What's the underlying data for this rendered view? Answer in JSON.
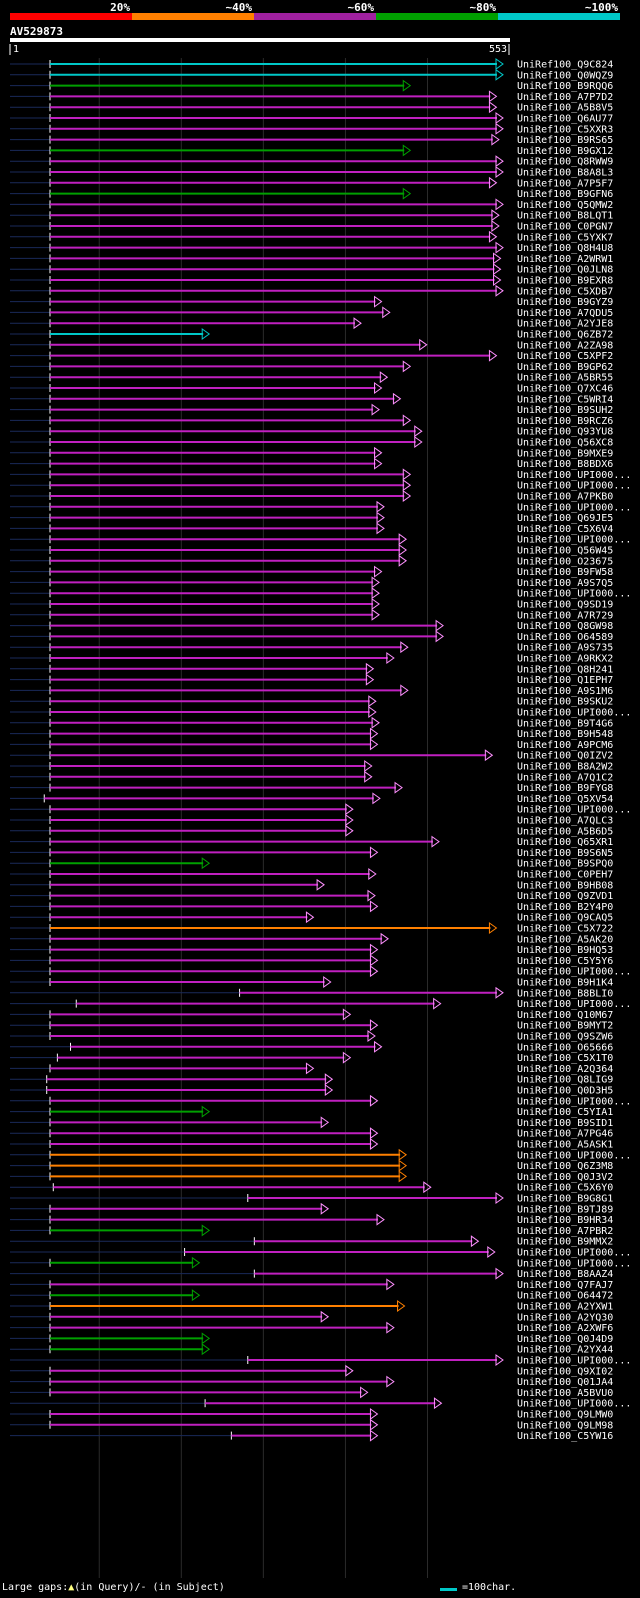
{
  "identity_scale": [
    {
      "label": "20%",
      "color": "#ff0000"
    },
    {
      "label": "~40%",
      "color": "#ff8000"
    },
    {
      "label": "~60%",
      "color": "#a020a0"
    },
    {
      "label": "~80%",
      "color": "#00a000"
    },
    {
      "label": "~100%",
      "color": "#00c8c8"
    }
  ],
  "query": {
    "id": "AV529873",
    "start": "1",
    "end": "553",
    "length": 553
  },
  "legend": {
    "text": "Large gaps:",
    "query_part": "(in Query)/",
    "subject_part": "- (in Subject)",
    "scale_text": "=100char."
  },
  "hits": [
    {
      "id": "UniRef100_Q9C824",
      "c": "cyan",
      "s": 1,
      "e": 553
    },
    {
      "id": "UniRef100_Q0WQZ9",
      "c": "cyan",
      "s": 1,
      "e": 553
    },
    {
      "id": "UniRef100_B9RQQ6",
      "c": "green",
      "s": 1,
      "e": 440
    },
    {
      "id": "UniRef100_A7P7D2",
      "c": "magenta",
      "s": 1,
      "e": 545
    },
    {
      "id": "UniRef100_A5B8V5",
      "c": "magenta",
      "s": 1,
      "e": 545
    },
    {
      "id": "UniRef100_Q6AU77",
      "c": "magenta",
      "s": 1,
      "e": 553
    },
    {
      "id": "UniRef100_C5XXR3",
      "c": "magenta",
      "s": 1,
      "e": 553
    },
    {
      "id": "UniRef100_B9RS65",
      "c": "magenta",
      "s": 1,
      "e": 548
    },
    {
      "id": "UniRef100_B9GX12",
      "c": "green",
      "s": 1,
      "e": 440
    },
    {
      "id": "UniRef100_Q8RWW9",
      "c": "magenta",
      "s": 1,
      "e": 553
    },
    {
      "id": "UniRef100_B8A8L3",
      "c": "magenta",
      "s": 1,
      "e": 553
    },
    {
      "id": "UniRef100_A7P5F7",
      "c": "magenta",
      "s": 1,
      "e": 545
    },
    {
      "id": "UniRef100_B9GFN6",
      "c": "green",
      "s": 1,
      "e": 440
    },
    {
      "id": "UniRef100_Q5QMW2",
      "c": "magenta",
      "s": 1,
      "e": 553
    },
    {
      "id": "UniRef100_B8LQT1",
      "c": "magenta",
      "s": 1,
      "e": 548
    },
    {
      "id": "UniRef100_C0PGN7",
      "c": "magenta",
      "s": 1,
      "e": 548
    },
    {
      "id": "UniRef100_C5YXK7",
      "c": "magenta",
      "s": 1,
      "e": 545
    },
    {
      "id": "UniRef100_Q8H4U8",
      "c": "magenta",
      "s": 1,
      "e": 553
    },
    {
      "id": "UniRef100_A2WRW1",
      "c": "magenta",
      "s": 1,
      "e": 550
    },
    {
      "id": "UniRef100_Q0JLN8",
      "c": "magenta",
      "s": 1,
      "e": 550
    },
    {
      "id": "UniRef100_B9EXR8",
      "c": "magenta",
      "s": 1,
      "e": 550
    },
    {
      "id": "UniRef100_C5XDB7",
      "c": "magenta",
      "s": 1,
      "e": 553
    },
    {
      "id": "UniRef100_B9GYZ9",
      "c": "magenta",
      "s": 1,
      "e": 405
    },
    {
      "id": "UniRef100_A7QDU5",
      "c": "magenta",
      "s": 1,
      "e": 415
    },
    {
      "id": "UniRef100_A2YJE8",
      "c": "magenta",
      "s": 1,
      "e": 380
    },
    {
      "id": "UniRef100_Q6ZB72",
      "c": "cyan",
      "s": 1,
      "e": 195
    },
    {
      "id": "UniRef100_A2ZA98",
      "c": "magenta",
      "s": 1,
      "e": 460
    },
    {
      "id": "UniRef100_C5XPF2",
      "c": "magenta",
      "s": 1,
      "e": 545
    },
    {
      "id": "UniRef100_B9GP62",
      "c": "magenta",
      "s": 1,
      "e": 440
    },
    {
      "id": "UniRef100_A5BR55",
      "c": "magenta",
      "s": 1,
      "e": 412
    },
    {
      "id": "UniRef100_Q7XC46",
      "c": "magenta",
      "s": 1,
      "e": 405
    },
    {
      "id": "UniRef100_C5WRI4",
      "c": "magenta",
      "s": 1,
      "e": 428
    },
    {
      "id": "UniRef100_B9SUH2",
      "c": "magenta",
      "s": 1,
      "e": 402
    },
    {
      "id": "UniRef100_B9RCZ6",
      "c": "magenta",
      "s": 1,
      "e": 440
    },
    {
      "id": "UniRef100_Q93YU8",
      "c": "magenta",
      "s": 1,
      "e": 454
    },
    {
      "id": "UniRef100_Q56XC8",
      "c": "magenta",
      "s": 1,
      "e": 454
    },
    {
      "id": "UniRef100_B9MXE9",
      "c": "magenta",
      "s": 1,
      "e": 405
    },
    {
      "id": "UniRef100_B8BDX6",
      "c": "magenta",
      "s": 1,
      "e": 405
    },
    {
      "id": "UniRef100_UPI000...",
      "c": "magenta",
      "s": 1,
      "e": 440
    },
    {
      "id": "UniRef100_UPI000...",
      "c": "magenta",
      "s": 1,
      "e": 440
    },
    {
      "id": "UniRef100_A7PKB0",
      "c": "magenta",
      "s": 1,
      "e": 440
    },
    {
      "id": "UniRef100_UPI000...",
      "c": "magenta",
      "s": 1,
      "e": 408
    },
    {
      "id": "UniRef100_Q69JE5",
      "c": "magenta",
      "s": 1,
      "e": 408
    },
    {
      "id": "UniRef100_C5X6V4",
      "c": "magenta",
      "s": 1,
      "e": 408
    },
    {
      "id": "UniRef100_UPI000...",
      "c": "magenta",
      "s": 1,
      "e": 435
    },
    {
      "id": "UniRef100_Q56W45",
      "c": "magenta",
      "s": 1,
      "e": 435
    },
    {
      "id": "UniRef100_O23675",
      "c": "magenta",
      "s": 1,
      "e": 435
    },
    {
      "id": "UniRef100_B9FW58",
      "c": "magenta",
      "s": 1,
      "e": 405
    },
    {
      "id": "UniRef100_A9S7Q5",
      "c": "magenta",
      "s": 1,
      "e": 402
    },
    {
      "id": "UniRef100_UPI000...",
      "c": "magenta",
      "s": 1,
      "e": 402
    },
    {
      "id": "UniRef100_Q9SD19",
      "c": "magenta",
      "s": 1,
      "e": 402
    },
    {
      "id": "UniRef100_A7R729",
      "c": "magenta",
      "s": 1,
      "e": 402
    },
    {
      "id": "UniRef100_Q8GW98",
      "c": "magenta",
      "s": 1,
      "e": 480
    },
    {
      "id": "UniRef100_O64589",
      "c": "magenta",
      "s": 1,
      "e": 480
    },
    {
      "id": "UniRef100_A9S735",
      "c": "magenta",
      "s": 1,
      "e": 437
    },
    {
      "id": "UniRef100_A9RKX2",
      "c": "magenta",
      "s": 1,
      "e": 420
    },
    {
      "id": "UniRef100_Q8H241",
      "c": "magenta",
      "s": 1,
      "e": 395
    },
    {
      "id": "UniRef100_Q1EPH7",
      "c": "magenta",
      "s": 1,
      "e": 395
    },
    {
      "id": "UniRef100_A9S1M6",
      "c": "magenta",
      "s": 1,
      "e": 437
    },
    {
      "id": "UniRef100_B9SKU2",
      "c": "magenta",
      "s": 1,
      "e": 398
    },
    {
      "id": "UniRef100_UPI000...",
      "c": "magenta",
      "s": 1,
      "e": 398
    },
    {
      "id": "UniRef100_B9T4G6",
      "c": "magenta",
      "s": 1,
      "e": 402
    },
    {
      "id": "UniRef100_B9H548",
      "c": "magenta",
      "s": 1,
      "e": 400
    },
    {
      "id": "UniRef100_A9PCM6",
      "c": "magenta",
      "s": 1,
      "e": 400
    },
    {
      "id": "UniRef100_Q0IZV2",
      "c": "magenta",
      "s": 1,
      "e": 540
    },
    {
      "id": "UniRef100_B8A2W2",
      "c": "magenta",
      "s": 1,
      "e": 393
    },
    {
      "id": "UniRef100_A7Q1C2",
      "c": "magenta",
      "s": 1,
      "e": 393
    },
    {
      "id": "UniRef100_B9FYG8",
      "c": "magenta",
      "s": 1,
      "e": 430
    },
    {
      "id": "UniRef100_Q5XV54",
      "c": "magenta",
      "s": -6,
      "e": 403
    },
    {
      "id": "UniRef100_UPI000...",
      "c": "magenta",
      "s": 1,
      "e": 370
    },
    {
      "id": "UniRef100_A7QLC3",
      "c": "magenta",
      "s": 1,
      "e": 370
    },
    {
      "id": "UniRef100_A5B6D5",
      "c": "magenta",
      "s": 1,
      "e": 370
    },
    {
      "id": "UniRef100_Q65XR1",
      "c": "magenta",
      "s": 1,
      "e": 475
    },
    {
      "id": "UniRef100_B9S6N5",
      "c": "magenta",
      "s": 1,
      "e": 400
    },
    {
      "id": "UniRef100_B9SPQ0",
      "c": "green",
      "s": 1,
      "e": 195
    },
    {
      "id": "UniRef100_C0PEH7",
      "c": "magenta",
      "s": 1,
      "e": 398
    },
    {
      "id": "UniRef100_B9HB08",
      "c": "magenta",
      "s": 1,
      "e": 335
    },
    {
      "id": "UniRef100_Q9ZVD1",
      "c": "magenta",
      "s": 1,
      "e": 397
    },
    {
      "id": "UniRef100_B2Y4P0",
      "c": "magenta",
      "s": 1,
      "e": 400
    },
    {
      "id": "UniRef100_Q9CAQ5",
      "c": "magenta",
      "s": 1,
      "e": 322
    },
    {
      "id": "UniRef100_C5X722",
      "c": "orange",
      "s": 1,
      "e": 545
    },
    {
      "id": "UniRef100_A5AK20",
      "c": "magenta",
      "s": 1,
      "e": 413
    },
    {
      "id": "UniRef100_B9HQ53",
      "c": "magenta",
      "s": 1,
      "e": 400
    },
    {
      "id": "UniRef100_C5Y5Y6",
      "c": "magenta",
      "s": 1,
      "e": 400
    },
    {
      "id": "UniRef100_UPI000...",
      "c": "magenta",
      "s": 1,
      "e": 400
    },
    {
      "id": "UniRef100_B9H1K4",
      "c": "magenta",
      "s": 1,
      "e": 343
    },
    {
      "id": "UniRef100_B8BLI0",
      "c": "magenta",
      "s": 232,
      "e": 553
    },
    {
      "id": "UniRef100_UPI000...",
      "c": "magenta",
      "s": 33,
      "e": 477
    },
    {
      "id": "UniRef100_Q10M67",
      "c": "magenta",
      "s": 1,
      "e": 367
    },
    {
      "id": "UniRef100_B9MYT2",
      "c": "magenta",
      "s": 1,
      "e": 400
    },
    {
      "id": "UniRef100_Q9SZW6",
      "c": "magenta",
      "s": 1,
      "e": 397
    },
    {
      "id": "UniRef100_O65666",
      "c": "magenta",
      "s": 26,
      "e": 405
    },
    {
      "id": "UniRef100_C5X1T0",
      "c": "magenta",
      "s": 10,
      "e": 367
    },
    {
      "id": "UniRef100_A2Q364",
      "c": "magenta",
      "s": 1,
      "e": 322
    },
    {
      "id": "UniRef100_Q8LIG9",
      "c": "magenta",
      "s": -3,
      "e": 345
    },
    {
      "id": "UniRef100_Q0D3H5",
      "c": "magenta",
      "s": -3,
      "e": 345
    },
    {
      "id": "UniRef100_UPI000...",
      "c": "magenta",
      "s": 1,
      "e": 400
    },
    {
      "id": "UniRef100_C5YIA1",
      "c": "green",
      "s": 1,
      "e": 195
    },
    {
      "id": "UniRef100_B9SID1",
      "c": "magenta",
      "s": 1,
      "e": 340
    },
    {
      "id": "UniRef100_A7PG46",
      "c": "magenta",
      "s": 1,
      "e": 400
    },
    {
      "id": "UniRef100_A5ASK1",
      "c": "magenta",
      "s": 1,
      "e": 400
    },
    {
      "id": "UniRef100_UPI000...",
      "c": "orange",
      "s": 1,
      "e": 435
    },
    {
      "id": "UniRef100_Q6Z3M8",
      "c": "orange",
      "s": 1,
      "e": 435
    },
    {
      "id": "UniRef100_Q0J3V2",
      "c": "orange",
      "s": 1,
      "e": 435
    },
    {
      "id": "UniRef100_C5X6Y0",
      "c": "magenta",
      "s": 5,
      "e": 465
    },
    {
      "id": "UniRef100_B9G8G1",
      "c": "magenta",
      "s": 242,
      "e": 553
    },
    {
      "id": "UniRef100_B9TJ89",
      "c": "magenta",
      "s": 1,
      "e": 340
    },
    {
      "id": "UniRef100_B9HR34",
      "c": "magenta",
      "s": 1,
      "e": 408
    },
    {
      "id": "UniRef100_A7PBR2",
      "c": "green",
      "s": 1,
      "e": 195
    },
    {
      "id": "UniRef100_B9MMX2",
      "c": "magenta",
      "s": 250,
      "e": 523
    },
    {
      "id": "UniRef100_UPI000...",
      "c": "magenta",
      "s": 165,
      "e": 543
    },
    {
      "id": "UniRef100_UPI000...",
      "c": "green",
      "s": 1,
      "e": 183
    },
    {
      "id": "UniRef100_B8AAZ4",
      "c": "magenta",
      "s": 250,
      "e": 553
    },
    {
      "id": "UniRef100_Q7FAJ7",
      "c": "magenta",
      "s": 1,
      "e": 420
    },
    {
      "id": "UniRef100_O64472",
      "c": "green",
      "s": 1,
      "e": 183
    },
    {
      "id": "UniRef100_A2YXW1",
      "c": "orange",
      "s": 1,
      "e": 433
    },
    {
      "id": "UniRef100_A2YQ30",
      "c": "magenta",
      "s": 1,
      "e": 340
    },
    {
      "id": "UniRef100_A2XWF6",
      "c": "magenta",
      "s": 1,
      "e": 420
    },
    {
      "id": "UniRef100_Q0J4D9",
      "c": "green",
      "s": 1,
      "e": 195
    },
    {
      "id": "UniRef100_A2YX44",
      "c": "green",
      "s": 1,
      "e": 195
    },
    {
      "id": "UniRef100_UPI000...",
      "c": "magenta",
      "s": 242,
      "e": 553
    },
    {
      "id": "UniRef100_Q9XI02",
      "c": "magenta",
      "s": 1,
      "e": 370
    },
    {
      "id": "UniRef100_Q01JA4",
      "c": "magenta",
      "s": 1,
      "e": 420
    },
    {
      "id": "UniRef100_A5BVU0",
      "c": "magenta",
      "s": 1,
      "e": 388
    },
    {
      "id": "UniRef100_UPI000...",
      "c": "magenta",
      "s": 190,
      "e": 478
    },
    {
      "id": "UniRef100_Q9LMW0",
      "c": "magenta",
      "s": 1,
      "e": 400
    },
    {
      "id": "UniRef100_Q9LM98",
      "c": "magenta",
      "s": 1,
      "e": 400
    },
    {
      "id": "UniRef100_C5YW16",
      "c": "magenta",
      "s": 222,
      "e": 400
    }
  ]
}
